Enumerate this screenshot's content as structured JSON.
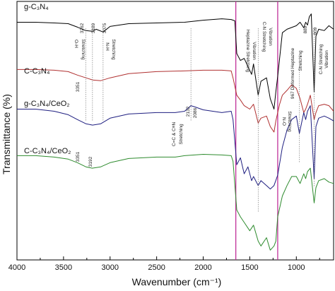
{
  "chart_data": {
    "type": "line",
    "xlabel": "Wavenumber (cm⁻¹)",
    "ylabel": "Transmittance (%)",
    "xlim": [
      4000,
      600
    ],
    "x_reversed": true,
    "x_ticks": [
      4000,
      3500,
      3000,
      2500,
      2000,
      1500,
      1000
    ],
    "y_ticks": false,
    "grid": false,
    "series": [
      {
        "name": "g-C3N4",
        "color": "#000000",
        "points": [
          [
            4000,
            30
          ],
          [
            3800,
            30
          ],
          [
            3600,
            31
          ],
          [
            3450,
            32
          ],
          [
            3351,
            37
          ],
          [
            3262,
            42
          ],
          [
            3189,
            43
          ],
          [
            3150,
            40
          ],
          [
            3075,
            44
          ],
          [
            3000,
            36
          ],
          [
            2800,
            32
          ],
          [
            2500,
            31
          ],
          [
            2200,
            30
          ],
          [
            2000,
            27
          ],
          [
            1800,
            25
          ],
          [
            1700,
            26
          ],
          [
            1660,
            28
          ],
          [
            1640,
            75
          ],
          [
            1600,
            85
          ],
          [
            1560,
            82
          ],
          [
            1480,
            105
          ],
          [
            1460,
            90
          ],
          [
            1410,
            135
          ],
          [
            1380,
            115
          ],
          [
            1320,
            110
          ],
          [
            1280,
            140
          ],
          [
            1240,
            155
          ],
          [
            1220,
            130
          ],
          [
            1200,
            108
          ],
          [
            1150,
            45
          ],
          [
            1100,
            40
          ],
          [
            1000,
            35
          ],
          [
            960,
            30
          ],
          [
            920,
            38
          ],
          [
            900,
            30
          ],
          [
            880,
            34
          ],
          [
            860,
            22
          ],
          [
            840,
            18
          ],
          [
            809,
            130
          ],
          [
            790,
            50
          ],
          [
            760,
            40
          ],
          [
            700,
            42
          ],
          [
            650,
            35
          ],
          [
            600,
            40
          ]
        ]
      },
      {
        "name": "C-C3N4",
        "color": "#b03030",
        "points": [
          [
            4000,
            98
          ],
          [
            3800,
            98
          ],
          [
            3600,
            99
          ],
          [
            3450,
            101
          ],
          [
            3351,
            106
          ],
          [
            3260,
            110
          ],
          [
            3189,
            113
          ],
          [
            3100,
            114
          ],
          [
            3000,
            110
          ],
          [
            2800,
            104
          ],
          [
            2500,
            101
          ],
          [
            2200,
            100
          ],
          [
            2000,
            99
          ],
          [
            1800,
            99
          ],
          [
            1700,
            100
          ],
          [
            1680,
            110
          ],
          [
            1640,
            135
          ],
          [
            1600,
            142
          ],
          [
            1560,
            150
          ],
          [
            1500,
            155
          ],
          [
            1460,
            148
          ],
          [
            1410,
            175
          ],
          [
            1380,
            168
          ],
          [
            1320,
            165
          ],
          [
            1280,
            180
          ],
          [
            1240,
            188
          ],
          [
            1220,
            172
          ],
          [
            1180,
            148
          ],
          [
            1150,
            135
          ],
          [
            1100,
            128
          ],
          [
            1050,
            120
          ],
          [
            1000,
            125
          ],
          [
            960,
            140
          ],
          [
            920,
            160
          ],
          [
            900,
            155
          ],
          [
            880,
            148
          ],
          [
            850,
            135
          ],
          [
            809,
            170
          ],
          [
            790,
            160
          ],
          [
            760,
            150
          ],
          [
            700,
            148
          ],
          [
            650,
            150
          ],
          [
            600,
            158
          ]
        ]
      },
      {
        "name": "g-C3N4/CeO2",
        "color": "#1e1e80",
        "points": [
          [
            4000,
            155
          ],
          [
            3800,
            155
          ],
          [
            3600,
            158
          ],
          [
            3450,
            163
          ],
          [
            3350,
            170
          ],
          [
            3260,
            176
          ],
          [
            3189,
            178
          ],
          [
            3100,
            176
          ],
          [
            3000,
            168
          ],
          [
            2800,
            162
          ],
          [
            2500,
            160
          ],
          [
            2300,
            160
          ],
          [
            2200,
            158
          ],
          [
            2132,
            150
          ],
          [
            2086,
            152
          ],
          [
            2000,
            156
          ],
          [
            1800,
            160
          ],
          [
            1700,
            158
          ],
          [
            1680,
            170
          ],
          [
            1640,
            235
          ],
          [
            1600,
            225
          ],
          [
            1560,
            248
          ],
          [
            1520,
            238
          ],
          [
            1480,
            258
          ],
          [
            1460,
            252
          ],
          [
            1410,
            265
          ],
          [
            1380,
            258
          ],
          [
            1320,
            265
          ],
          [
            1280,
            270
          ],
          [
            1240,
            265
          ],
          [
            1200,
            250
          ],
          [
            1150,
            210
          ],
          [
            1100,
            185
          ],
          [
            1050,
            170
          ],
          [
            1000,
            165
          ],
          [
            967,
            190
          ],
          [
            920,
            160
          ],
          [
            900,
            170
          ],
          [
            880,
            158
          ],
          [
            850,
            150
          ],
          [
            809,
            255
          ],
          [
            790,
            180
          ],
          [
            760,
            168
          ],
          [
            700,
            165
          ],
          [
            650,
            168
          ],
          [
            600,
            172
          ]
        ]
      },
      {
        "name": "C-C3N4/CeO2",
        "color": "#2e8b2e",
        "points": [
          [
            4000,
            222
          ],
          [
            3800,
            222
          ],
          [
            3600,
            224
          ],
          [
            3450,
            227
          ],
          [
            3351,
            232
          ],
          [
            3260,
            238
          ],
          [
            3192,
            240
          ],
          [
            3100,
            238
          ],
          [
            3000,
            232
          ],
          [
            2800,
            226
          ],
          [
            2500,
            224
          ],
          [
            2300,
            224
          ],
          [
            2200,
            222
          ],
          [
            2000,
            220
          ],
          [
            1800,
            221
          ],
          [
            1700,
            222
          ],
          [
            1680,
            230
          ],
          [
            1640,
            300
          ],
          [
            1600,
            310
          ],
          [
            1560,
            318
          ],
          [
            1500,
            330
          ],
          [
            1460,
            322
          ],
          [
            1410,
            345
          ],
          [
            1380,
            352
          ],
          [
            1320,
            340
          ],
          [
            1280,
            358
          ],
          [
            1240,
            352
          ],
          [
            1220,
            345
          ],
          [
            1200,
            310
          ],
          [
            1150,
            280
          ],
          [
            1100,
            265
          ],
          [
            1050,
            252
          ],
          [
            1000,
            252
          ],
          [
            960,
            262
          ],
          [
            920,
            248
          ],
          [
            900,
            255
          ],
          [
            880,
            245
          ],
          [
            850,
            240
          ],
          [
            809,
            290
          ],
          [
            790,
            268
          ],
          [
            760,
            258
          ],
          [
            700,
            255
          ],
          [
            650,
            260
          ],
          [
            600,
            262
          ]
        ]
      }
    ],
    "annotations": [
      {
        "text": "g-C₃N₄",
        "kind": "series-label"
      },
      {
        "text": "C-C₃N₄",
        "kind": "series-label"
      },
      {
        "text": "g-C₃N₄/CeO₂",
        "kind": "series-label"
      },
      {
        "text": "C-C₃N₄/CeO₂",
        "kind": "series-label"
      },
      {
        "text": "O-H",
        "kind": "peak"
      },
      {
        "text": "Stretching",
        "kind": "peak"
      },
      {
        "text": "3262",
        "kind": "peak"
      },
      {
        "text": "3189",
        "kind": "peak"
      },
      {
        "text": "3075",
        "kind": "peak"
      },
      {
        "text": "N-H",
        "kind": "peak"
      },
      {
        "text": "Stretching",
        "kind": "peak"
      },
      {
        "text": "3351",
        "kind": "peak"
      },
      {
        "text": "3351",
        "kind": "peak"
      },
      {
        "text": "3192",
        "kind": "peak"
      },
      {
        "text": "C=C & C≡N",
        "kind": "peak"
      },
      {
        "text": "Stretching",
        "kind": "peak"
      },
      {
        "text": "2132",
        "kind": "peak"
      },
      {
        "text": "2086",
        "kind": "peak"
      },
      {
        "text": "Heptazine Stretching",
        "kind": "peak"
      },
      {
        "text": "Vibration",
        "kind": "peak"
      },
      {
        "text": "C-N Stretching",
        "kind": "peak"
      },
      {
        "text": "Vibration",
        "kind": "peak"
      },
      {
        "text": "N-O",
        "kind": "peak"
      },
      {
        "text": "Stretching",
        "kind": "peak"
      },
      {
        "text": "967 Deformed Heptazine",
        "kind": "peak"
      },
      {
        "text": "Stretching",
        "kind": "peak"
      },
      {
        "text": "889",
        "kind": "peak"
      },
      {
        "text": "809",
        "kind": "peak"
      },
      {
        "text": "C-N Stretching",
        "kind": "peak"
      },
      {
        "text": "Vibration",
        "kind": "peak"
      }
    ],
    "vertical_lines": [
      1650,
      1200
    ],
    "vertical_line_color": "#c0309a"
  }
}
